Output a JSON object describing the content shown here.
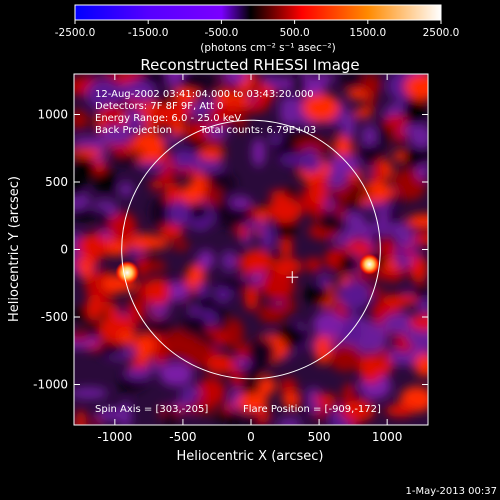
{
  "chart_data": {
    "type": "heatmap",
    "title": "Reconstructed RHESSI Image",
    "xlabel": "Heliocentric X (arcsec)",
    "ylabel": "Heliocentric Y (arcsec)",
    "xlim": [
      -1300,
      1300
    ],
    "ylim": [
      -1300,
      1300
    ],
    "xticks": [
      -1000,
      -500,
      0,
      500,
      1000
    ],
    "yticks": [
      -1000,
      -500,
      0,
      500,
      1000
    ],
    "xtick_labels": [
      "-1000",
      "-500",
      "0",
      "500",
      "1000"
    ],
    "ytick_labels": [
      "-1000",
      "-500",
      "0",
      "500",
      "1000"
    ],
    "colorbar": {
      "range": [
        -2500,
        2500
      ],
      "ticks": [
        "-2500.0",
        "-1500.0",
        "-500.0",
        "500.0",
        "1500.0",
        "2500.0"
      ],
      "unit_label": "(photons cm⁻² s⁻¹ asec⁻²)",
      "colormap": [
        "#0000ff",
        "#7a00ff",
        "#000000",
        "#ff0000",
        "#ff8a00",
        "#ffffff"
      ]
    },
    "annotations": [
      "12-Aug-2002 03:41:04.000 to 03:43:20.000",
      "Detectors: 7F 8F 9F, Att 0",
      "Energy Range: 6.0 - 25.0 keV",
      "Back Projection",
      "Total counts: 6.79E+03"
    ],
    "footer_left": "Spin Axis = [303,-205]",
    "footer_right": "Flare Position = [-909,-172]",
    "spin_axis": [
      303,
      -205
    ],
    "flare_position": [
      -909,
      -172
    ],
    "solar_disk_radius": 950,
    "bright_sources": [
      {
        "x": -909,
        "y": -172,
        "level": 2500
      },
      {
        "x": 870,
        "y": -110,
        "level": 2200
      }
    ],
    "timestamp": "1-May-2013 00:37"
  }
}
